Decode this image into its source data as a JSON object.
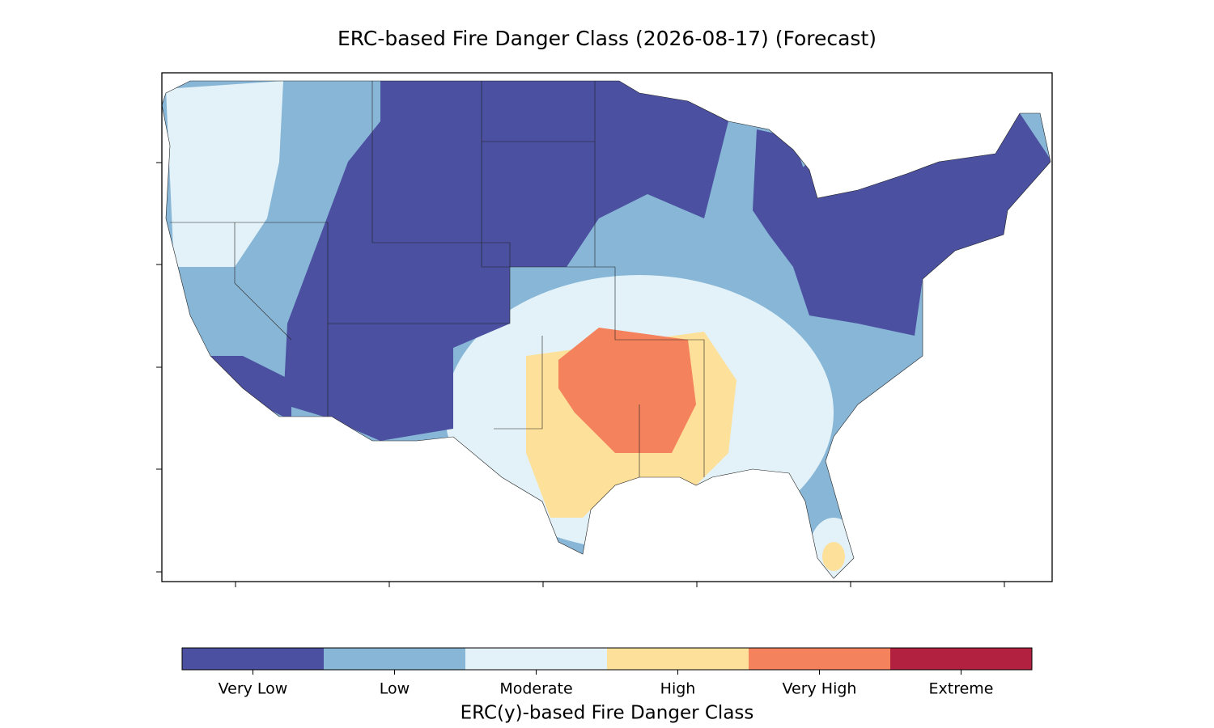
{
  "title": "ERC-based Fire Danger Class (2026-08-17) (Forecast)",
  "colorbar": {
    "label": "ERC(y)-based Fire Danger Class",
    "classes": [
      {
        "label": "Very Low",
        "color": "#4b50a1"
      },
      {
        "label": "Low",
        "color": "#88b6d6"
      },
      {
        "label": "Moderate",
        "color": "#e2f2f8"
      },
      {
        "label": "High",
        "color": "#fde09a"
      },
      {
        "label": "Very High",
        "color": "#f4825c"
      },
      {
        "label": "Extreme",
        "color": "#b2213f"
      }
    ]
  }
}
